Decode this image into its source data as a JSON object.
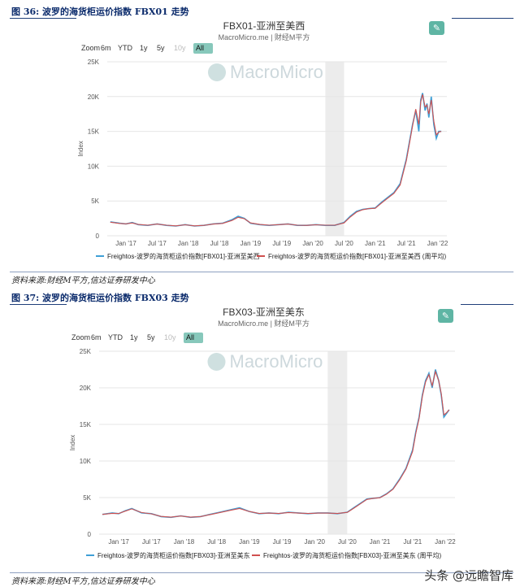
{
  "figures": [
    {
      "caption": "图 36: 波罗的海货柜运价指数 FBX01 走势",
      "source": "资料来源:财经M平方,信达证券研发中心",
      "chart_title": "FBX01-亚洲至美西",
      "chart_subtitle": "MacroMicro.me | 财经M平方",
      "watermark": "MacroMicro"
    },
    {
      "caption": "图 37: 波罗的海货柜运价指数 FBX03 走势",
      "source": "资料来源:财经M平方,信达证券研发中心",
      "chart_title": "FBX03-亚洲至美东",
      "chart_subtitle": "MacroMicro.me | 财经M平方",
      "watermark": "MacroMicro"
    }
  ],
  "zoom_buttons": [
    "Zoom",
    "6m",
    "YTD",
    "1y",
    "5y",
    "10y",
    "All"
  ],
  "zoom_active": "All",
  "edit_icon": "pencil-icon",
  "colors": {
    "series1": "#3f9fd6",
    "series2": "#d0504f",
    "accent": "#5fb5a4",
    "shade": "#ececec"
  },
  "footer_logo": "头条 @远瞻智库",
  "chart_data": [
    {
      "type": "line",
      "title": "FBX01-亚洲至美西",
      "ylabel": "Index",
      "ylim": [
        0,
        25000
      ],
      "yticks": [
        0,
        5000,
        10000,
        15000,
        20000,
        25000
      ],
      "ytick_labels": [
        "0",
        "5K",
        "10K",
        "15K",
        "20K",
        "25K"
      ],
      "xtick_labels": [
        "Jan '17",
        "Jul '17",
        "Jan '18",
        "Jul '18",
        "Jan '19",
        "Jul '19",
        "Jan '20",
        "Jul '20",
        "Jan '21",
        "Jul '21",
        "Jan '22"
      ],
      "shaded_range": [
        2020.2,
        2020.5
      ],
      "series": [
        {
          "name": "Freightos-波罗的海货柜运价指数[FBX01]-亚洲至美西",
          "x": [
            2016.75,
            2016.9,
            2017.0,
            2017.1,
            2017.2,
            2017.35,
            2017.5,
            2017.65,
            2017.8,
            2017.95,
            2018.1,
            2018.25,
            2018.4,
            2018.55,
            2018.7,
            2018.8,
            2018.9,
            2019.0,
            2019.15,
            2019.3,
            2019.45,
            2019.6,
            2019.75,
            2019.9,
            2020.05,
            2020.2,
            2020.35,
            2020.5,
            2020.6,
            2020.7,
            2020.8,
            2020.9,
            2021.0,
            2021.1,
            2021.2,
            2021.3,
            2021.4,
            2021.5,
            2021.6,
            2021.65,
            2021.7,
            2021.73,
            2021.76,
            2021.8,
            2021.83,
            2021.86,
            2021.9,
            2021.94,
            2021.98,
            2022.02,
            2022.06
          ],
          "y": [
            2000,
            1800,
            1700,
            1900,
            1600,
            1500,
            1700,
            1500,
            1400,
            1600,
            1400,
            1500,
            1700,
            1800,
            2300,
            2800,
            2500,
            1800,
            1600,
            1500,
            1600,
            1700,
            1500,
            1500,
            1600,
            1500,
            1500,
            1900,
            2800,
            3500,
            3800,
            3900,
            4000,
            4800,
            5500,
            6200,
            7500,
            11000,
            16000,
            18000,
            15000,
            19500,
            20500,
            18000,
            19000,
            17000,
            20000,
            16000,
            14000,
            15000,
            15000
          ]
        },
        {
          "name": "Freightos-波罗的海货柜运价指数[FBX01]-亚洲至美西 (周平均)",
          "x": [
            2016.75,
            2016.9,
            2017.0,
            2017.1,
            2017.2,
            2017.35,
            2017.5,
            2017.65,
            2017.8,
            2017.95,
            2018.1,
            2018.25,
            2018.4,
            2018.55,
            2018.7,
            2018.8,
            2018.9,
            2019.0,
            2019.15,
            2019.3,
            2019.45,
            2019.6,
            2019.75,
            2019.9,
            2020.05,
            2020.2,
            2020.35,
            2020.5,
            2020.6,
            2020.7,
            2020.8,
            2020.9,
            2021.0,
            2021.1,
            2021.2,
            2021.3,
            2021.4,
            2021.5,
            2021.6,
            2021.65,
            2021.7,
            2021.73,
            2021.76,
            2021.8,
            2021.83,
            2021.86,
            2021.9,
            2021.94,
            2021.98,
            2022.02,
            2022.06
          ],
          "y": [
            1950,
            1780,
            1720,
            1850,
            1620,
            1520,
            1680,
            1520,
            1420,
            1580,
            1420,
            1500,
            1680,
            1780,
            2200,
            2650,
            2450,
            1850,
            1620,
            1520,
            1600,
            1680,
            1520,
            1500,
            1580,
            1520,
            1520,
            1850,
            2700,
            3400,
            3750,
            3900,
            3950,
            4700,
            5400,
            6100,
            7300,
            10800,
            15800,
            18200,
            16000,
            19200,
            20300,
            18500,
            18800,
            17500,
            19500,
            16500,
            14500,
            14900,
            15000
          ]
        }
      ]
    },
    {
      "type": "line",
      "title": "FBX03-亚洲至美东",
      "ylabel": "Index",
      "ylim": [
        0,
        25000
      ],
      "yticks": [
        0,
        5000,
        10000,
        15000,
        20000,
        25000
      ],
      "ytick_labels": [
        "0",
        "5K",
        "10K",
        "15K",
        "20K",
        "25K"
      ],
      "xtick_labels": [
        "Jan '17",
        "Jul '17",
        "Jan '18",
        "Jul '18",
        "Jan '19",
        "Jul '19",
        "Jan '20",
        "Jul '20",
        "Jan '21",
        "Jul '21",
        "Jan '22"
      ],
      "shaded_range": [
        2020.2,
        2020.5
      ],
      "series": [
        {
          "name": "Freightos-波罗的海货柜运价指数[FBX03]-亚洲至美东",
          "x": [
            2016.75,
            2016.9,
            2017.0,
            2017.1,
            2017.2,
            2017.35,
            2017.5,
            2017.65,
            2017.8,
            2017.95,
            2018.1,
            2018.25,
            2018.4,
            2018.55,
            2018.7,
            2018.85,
            2019.0,
            2019.15,
            2019.3,
            2019.45,
            2019.6,
            2019.75,
            2019.9,
            2020.05,
            2020.2,
            2020.35,
            2020.5,
            2020.6,
            2020.7,
            2020.8,
            2020.9,
            2021.0,
            2021.1,
            2021.2,
            2021.3,
            2021.4,
            2021.5,
            2021.55,
            2021.6,
            2021.65,
            2021.7,
            2021.75,
            2021.8,
            2021.85,
            2021.9,
            2021.94,
            2021.98,
            2022.02,
            2022.06
          ],
          "y": [
            2700,
            2900,
            2800,
            3200,
            3500,
            2900,
            2800,
            2400,
            2300,
            2500,
            2300,
            2400,
            2700,
            3000,
            3300,
            3600,
            3100,
            2800,
            2900,
            2800,
            3000,
            2900,
            2800,
            2900,
            2900,
            2800,
            3000,
            3600,
            4200,
            4800,
            4900,
            5000,
            5500,
            6200,
            7500,
            9000,
            11500,
            14000,
            16000,
            19000,
            21000,
            22000,
            20000,
            22500,
            21000,
            19000,
            16000,
            16500,
            17000
          ]
        },
        {
          "name": "Freightos-波罗的海货柜运价指数[FBX03]-亚洲至美东 (周平均)",
          "x": [
            2016.75,
            2016.9,
            2017.0,
            2017.1,
            2017.2,
            2017.35,
            2017.5,
            2017.65,
            2017.8,
            2017.95,
            2018.1,
            2018.25,
            2018.4,
            2018.55,
            2018.7,
            2018.85,
            2019.0,
            2019.15,
            2019.3,
            2019.45,
            2019.6,
            2019.75,
            2019.9,
            2020.05,
            2020.2,
            2020.35,
            2020.5,
            2020.6,
            2020.7,
            2020.8,
            2020.9,
            2021.0,
            2021.1,
            2021.2,
            2021.3,
            2021.4,
            2021.5,
            2021.55,
            2021.6,
            2021.65,
            2021.7,
            2021.75,
            2021.8,
            2021.85,
            2021.9,
            2021.94,
            2021.98,
            2022.02,
            2022.06
          ],
          "y": [
            2700,
            2850,
            2820,
            3150,
            3450,
            2950,
            2780,
            2420,
            2320,
            2480,
            2320,
            2400,
            2680,
            2950,
            3250,
            3500,
            3100,
            2820,
            2880,
            2820,
            2950,
            2880,
            2820,
            2880,
            2880,
            2820,
            2980,
            3550,
            4150,
            4750,
            4900,
            4980,
            5450,
            6150,
            7400,
            8900,
            11300,
            13800,
            15800,
            18800,
            20800,
            21800,
            20300,
            22200,
            21000,
            19200,
            16300,
            16600,
            17000
          ]
        }
      ]
    }
  ]
}
